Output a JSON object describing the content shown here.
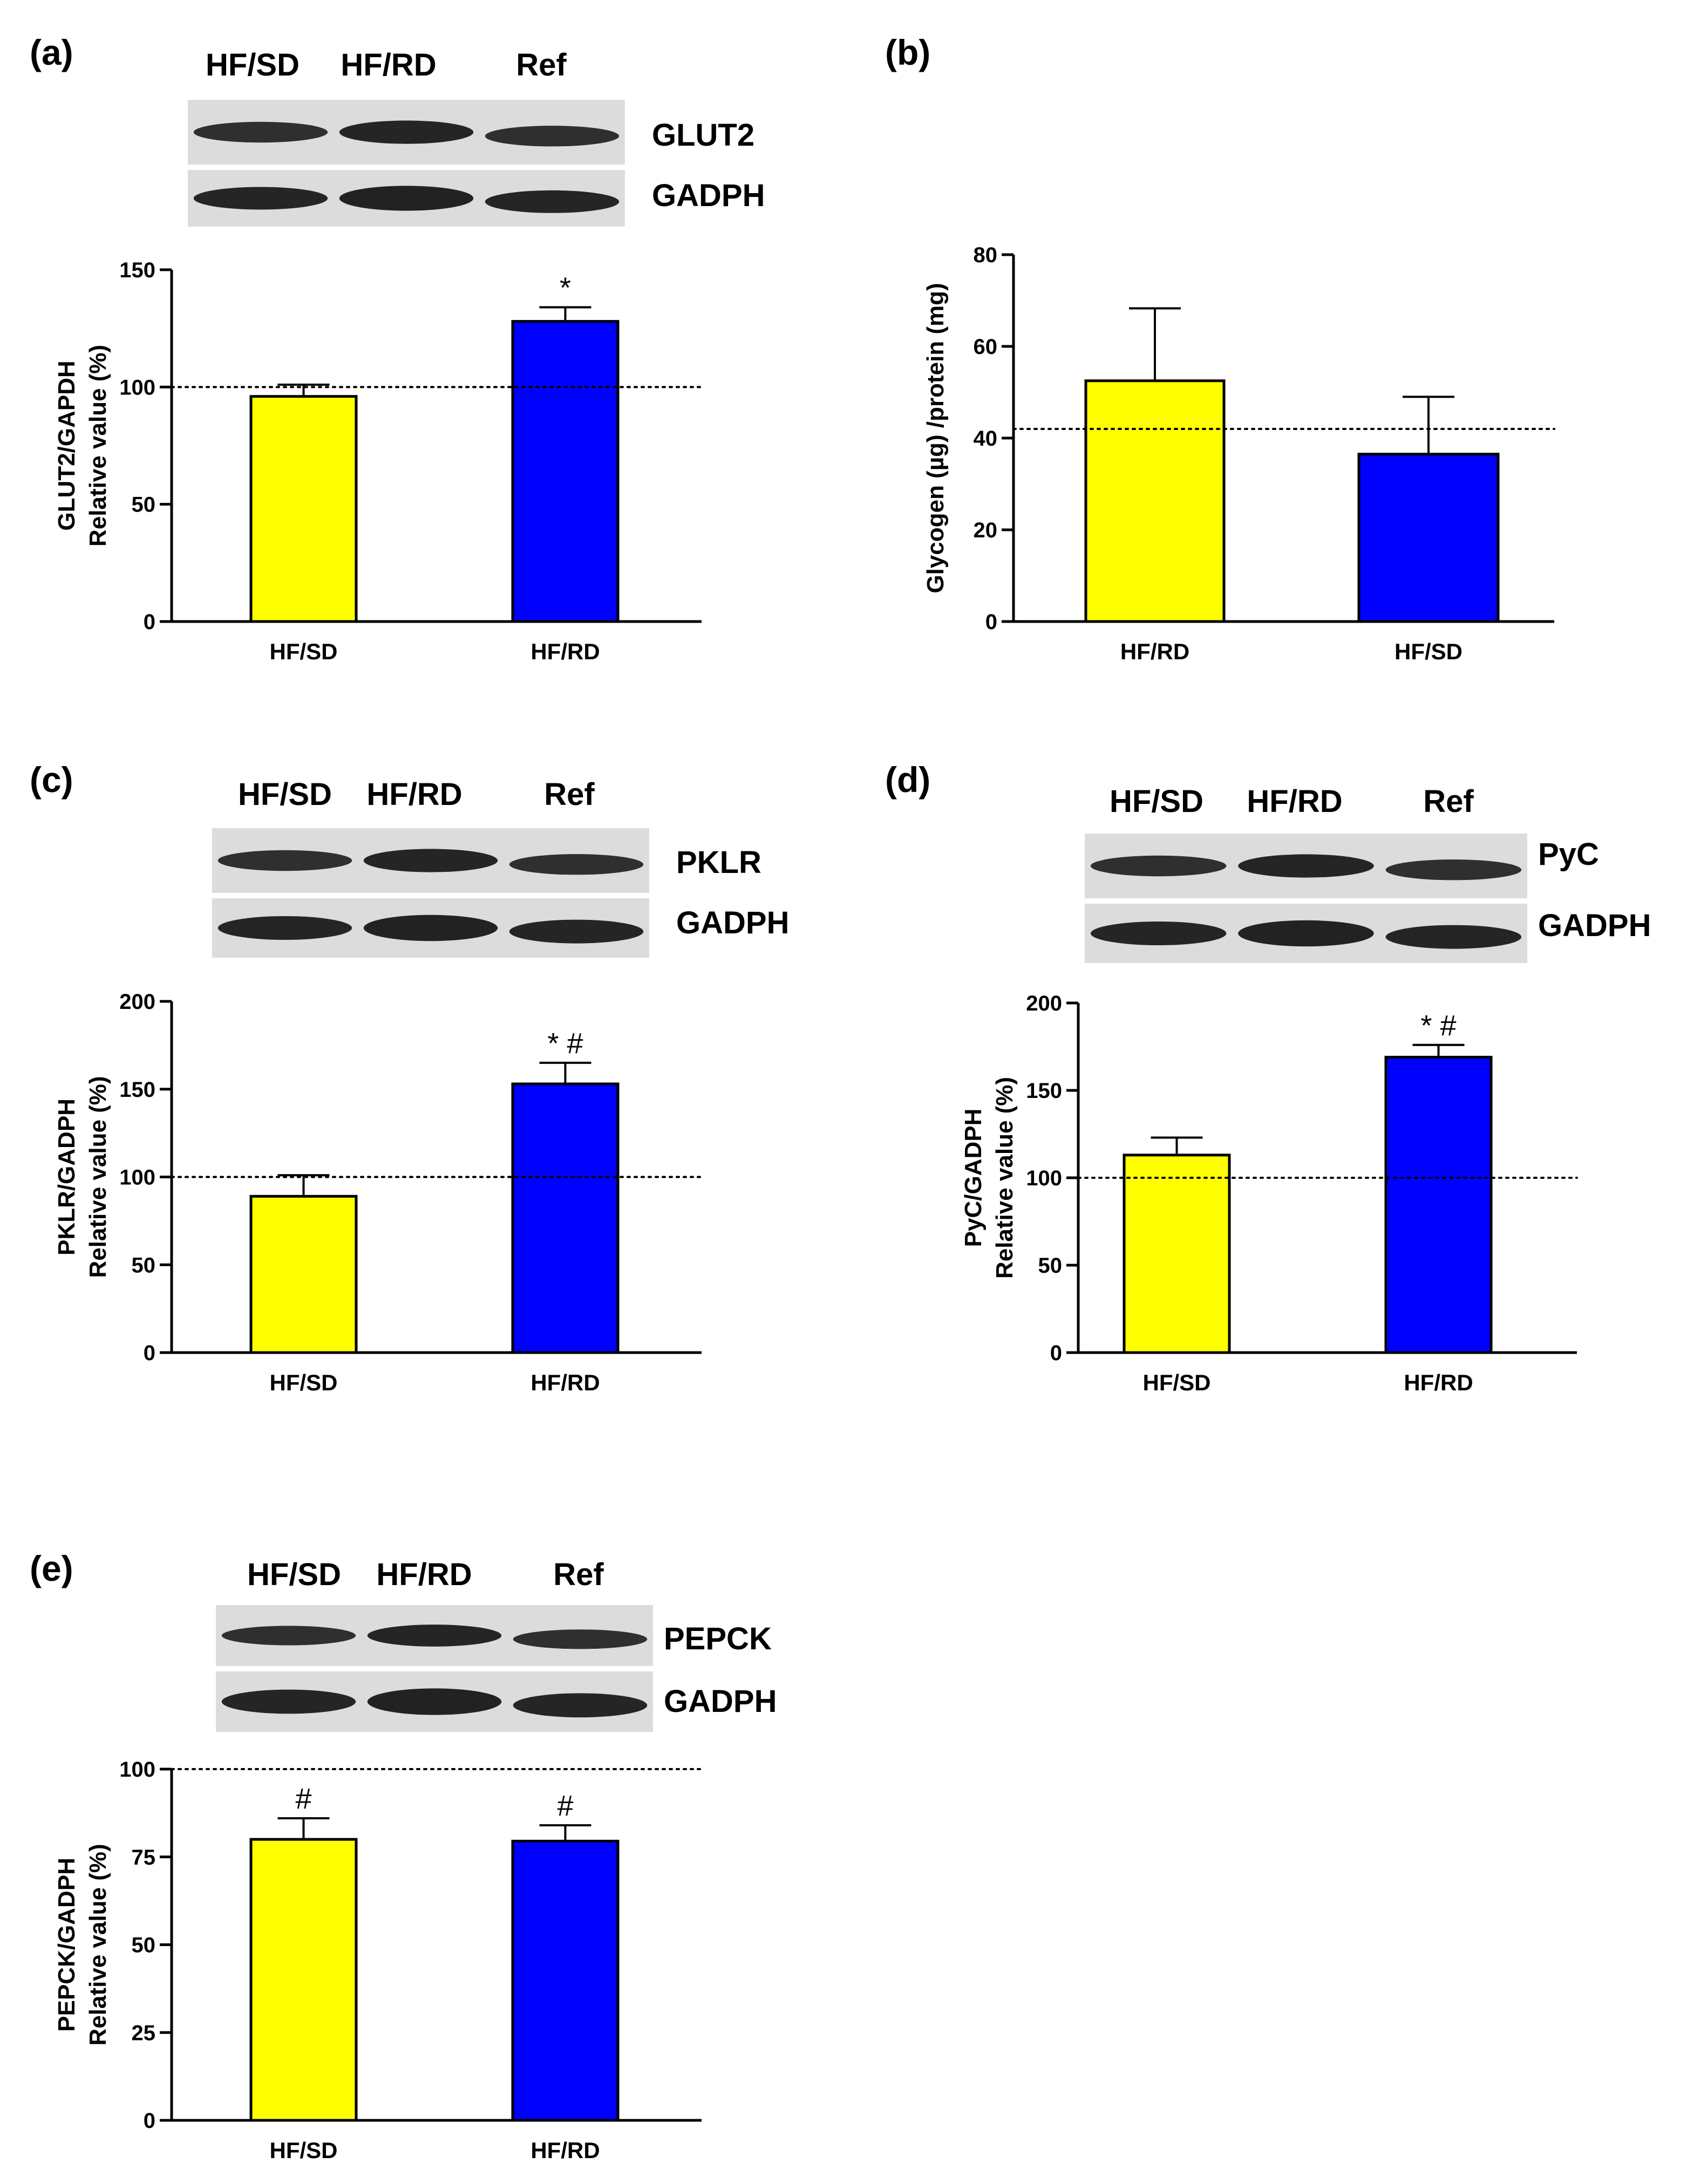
{
  "chart_data": [
    {
      "id": "a",
      "type": "bar",
      "panel_label": "(a)",
      "blot": {
        "lanes": [
          "HF/SD",
          "HF/RD",
          "Ref"
        ],
        "proteins": [
          "GLUT2",
          "GADPH"
        ]
      },
      "categories": [
        "HF/SD",
        "HF/RD"
      ],
      "values": [
        96,
        128
      ],
      "errors": [
        5,
        6
      ],
      "colors": [
        "#ffff00",
        "#0000ff"
      ],
      "significance": [
        "",
        "*"
      ],
      "reference_line": 100,
      "ylabel_lines": [
        "GLUT2/GAPDH",
        "Relative value (%)"
      ],
      "ylim": [
        0,
        150
      ],
      "yticks": [
        0,
        50,
        100,
        150
      ]
    },
    {
      "id": "b",
      "type": "bar",
      "panel_label": "(b)",
      "categories": [
        "HF/RD",
        "HF/SD"
      ],
      "values": [
        52.5,
        36.5
      ],
      "errors": [
        15.8,
        12.5
      ],
      "colors": [
        "#ffff00",
        "#0000ff"
      ],
      "significance": [
        "",
        ""
      ],
      "reference_line": 42,
      "ylabel_lines": [
        "Glycogen (µg) /protein (mg)"
      ],
      "ylim": [
        0,
        80
      ],
      "yticks": [
        0,
        20,
        40,
        60,
        80
      ]
    },
    {
      "id": "c",
      "type": "bar",
      "panel_label": "(c)",
      "blot": {
        "lanes": [
          "HF/SD",
          "HF/RD",
          "Ref"
        ],
        "proteins": [
          "PKLR",
          "GADPH"
        ]
      },
      "categories": [
        "HF/SD",
        "HF/RD"
      ],
      "values": [
        89,
        153
      ],
      "errors": [
        12,
        12
      ],
      "colors": [
        "#ffff00",
        "#0000ff"
      ],
      "significance": [
        "",
        "* #"
      ],
      "reference_line": 100,
      "ylabel_lines": [
        "PKLR/GADPH",
        "Relative value (%)"
      ],
      "ylim": [
        0,
        200
      ],
      "yticks": [
        0,
        50,
        100,
        150,
        200
      ]
    },
    {
      "id": "d",
      "type": "bar",
      "panel_label": "(d)",
      "blot": {
        "lanes": [
          "HF/SD",
          "HF/RD",
          "Ref"
        ],
        "proteins": [
          "PyC",
          "GADPH"
        ]
      },
      "categories": [
        "HF/SD",
        "HF/RD"
      ],
      "values": [
        113,
        169
      ],
      "errors": [
        10,
        7
      ],
      "colors": [
        "#ffff00",
        "#0000ff"
      ],
      "significance": [
        "",
        "* #"
      ],
      "reference_line": 100,
      "ylabel_lines": [
        "PyC/GADPH",
        "Relative value (%)"
      ],
      "ylim": [
        0,
        200
      ],
      "yticks": [
        0,
        50,
        100,
        150,
        200
      ]
    },
    {
      "id": "e",
      "type": "bar",
      "panel_label": "(e)",
      "blot": {
        "lanes": [
          "HF/SD",
          "HF/RD",
          "Ref"
        ],
        "proteins": [
          "PEPCK",
          "GADPH"
        ]
      },
      "categories": [
        "HF/SD",
        "HF/RD"
      ],
      "values": [
        80,
        79.5
      ],
      "errors": [
        6,
        4.5
      ],
      "colors": [
        "#ffff00",
        "#0000ff"
      ],
      "significance": [
        "#",
        "#"
      ],
      "reference_line": 100,
      "ylabel_lines": [
        "PEPCK/GADPH",
        "Relative value (%)"
      ],
      "ylim": [
        0,
        100
      ],
      "yticks": [
        0,
        25,
        50,
        75,
        100
      ]
    }
  ]
}
